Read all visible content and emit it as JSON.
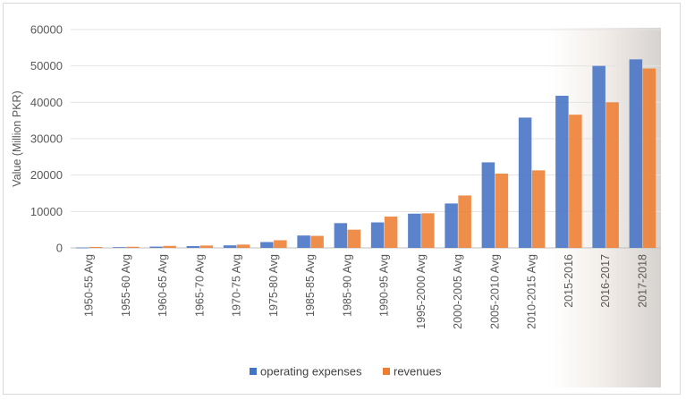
{
  "chart_data": {
    "type": "bar",
    "title": "",
    "xlabel": "",
    "ylabel": "Value (Million PKR)",
    "ylim": [
      0,
      60000
    ],
    "yticks": [
      0,
      10000,
      20000,
      30000,
      40000,
      50000,
      60000
    ],
    "categories": [
      "1950-55 Avg",
      "1955-60 Avg",
      "1960-65 Avg",
      "1965-70 Avg",
      "1970-75 Avg",
      "1975-80 Avg",
      "1985-85 Avg",
      "1985-90 Avg",
      "1990-95 Avg",
      "1995-2000 Avg",
      "2000-2005 Avg",
      "2005-2010 Avg",
      "2010-2015 Avg",
      "2015-2016",
      "2016-2017",
      "2017-2018"
    ],
    "series": [
      {
        "name": "operating expenses",
        "color": "#4472c4",
        "values": [
          100,
          200,
          350,
          500,
          700,
          1600,
          3400,
          6800,
          7000,
          9400,
          12200,
          23500,
          35800,
          41800,
          50000,
          51800
        ]
      },
      {
        "name": "revenues",
        "color": "#ed7d31",
        "values": [
          250,
          300,
          550,
          650,
          900,
          2100,
          3300,
          5000,
          8600,
          9500,
          14400,
          20400,
          21300,
          36600,
          40000,
          49300
        ]
      }
    ],
    "highlight_categories": [
      "2015-2016",
      "2016-2017",
      "2017-2018"
    ],
    "grid": true,
    "legend_position": "bottom"
  }
}
